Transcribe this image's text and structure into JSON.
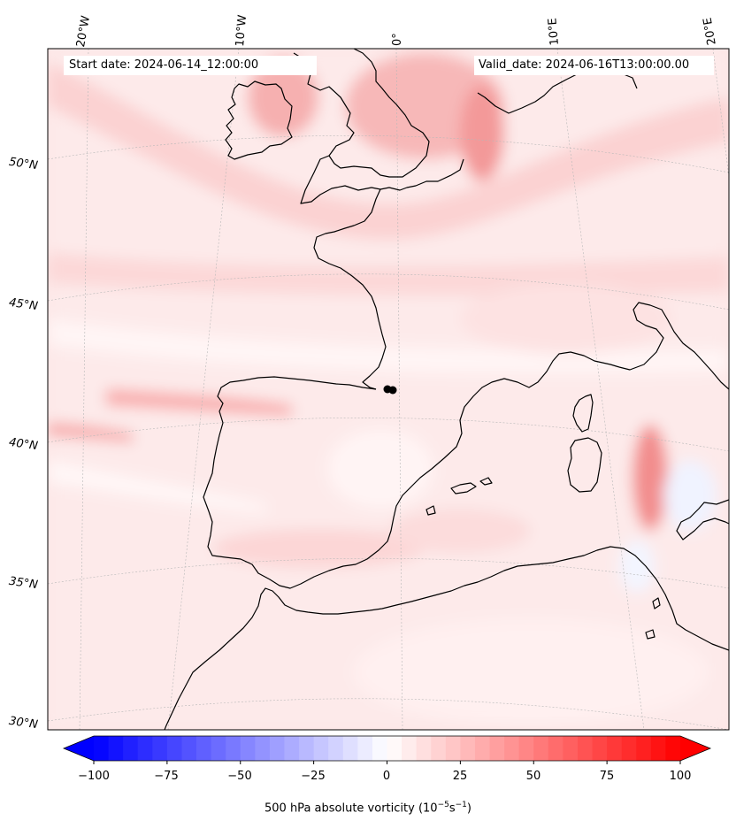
{
  "header": {
    "start_date": "Start date: 2024-06-14_12:00:00",
    "valid_date": "Valid_date: 2024-06-16T13:00:00.00"
  },
  "map": {
    "projection": "conic",
    "field": "500 hPa absolute vorticity",
    "lon_labels": [
      "20°W",
      "10°W",
      "0°",
      "10°E",
      "20°E"
    ],
    "lat_labels": [
      "50°N",
      "45°N",
      "40°N",
      "35°N",
      "30°N"
    ],
    "gridlines": true,
    "coastline_color": "#000000",
    "marker": {
      "name": "black dot",
      "lat": 42.1,
      "lon": 0.5
    }
  },
  "colorbar": {
    "label": "500 hPa absolute vorticity (10",
    "label_exp1": "−5",
    "label_mid": "s",
    "label_exp2": "−1",
    "label_close": ")",
    "ticks": [
      "−100",
      "−75",
      "−50",
      "−25",
      "0",
      "25",
      "50",
      "75",
      "100"
    ],
    "range": [
      -100,
      100
    ],
    "step": 5,
    "colors": {
      "min": "#0000ff",
      "mid": "#ffffff",
      "max": "#ff0000"
    },
    "extend": "both"
  }
}
